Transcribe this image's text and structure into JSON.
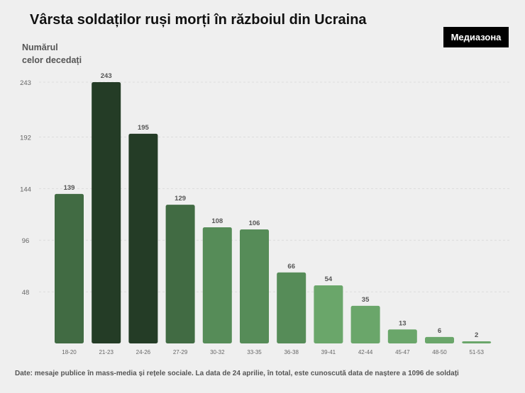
{
  "title": "Vârsta soldaților ruși morți în războiul din Ucraina",
  "logo": "Медиазона",
  "ylabel_lines": [
    "Numărul",
    "celor decedați"
  ],
  "footnote": "Date: mesaje publice în mass-media și rețele sociale. La data de 24 aprilie, în total, este cunoscută data de naștere a 1096 de soldați",
  "chart_data": {
    "type": "bar",
    "title": "Vârsta soldaților ruși morți în războiul din Ucraina",
    "ylabel": "Numărul celor decedați",
    "xlabel": "",
    "categories": [
      "18-20",
      "21-23",
      "24-26",
      "27-29",
      "30-32",
      "33-35",
      "36-38",
      "39-41",
      "42-44",
      "45-47",
      "48-50",
      "51-53"
    ],
    "values": [
      139,
      243,
      195,
      129,
      108,
      106,
      66,
      54,
      35,
      13,
      6,
      2
    ],
    "data_labels": [
      "139",
      "243",
      "195",
      "129",
      "108",
      "106",
      "66",
      "54",
      "35",
      "13",
      "6",
      "2"
    ],
    "yticks": [
      48,
      96,
      144,
      192,
      243
    ],
    "ytick_labels": [
      "48",
      "96",
      "144",
      "192",
      "243"
    ],
    "ylim": [
      0,
      243
    ],
    "grid": true,
    "legend": "none",
    "colors": [
      "#416b43",
      "#243c26",
      "#243c26",
      "#416b43",
      "#568c58",
      "#568c58",
      "#568c58",
      "#6aa66a",
      "#6aa66a",
      "#6aa66a",
      "#6aa66a",
      "#6aa66a"
    ]
  }
}
